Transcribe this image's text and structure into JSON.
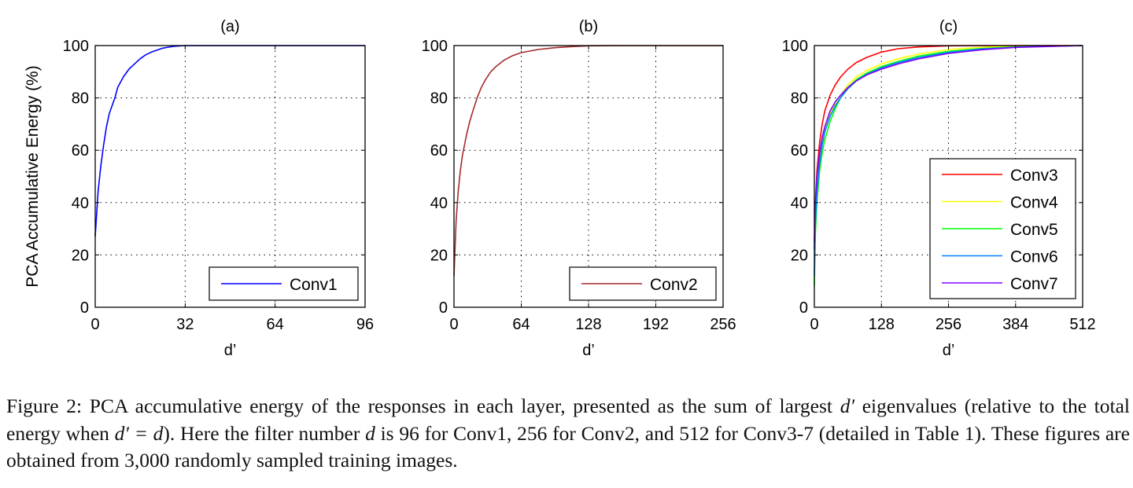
{
  "chart_data": [
    {
      "type": "line",
      "title": "(a)",
      "xlabel": "d’",
      "ylabel": "PCA Accumulative Energy (%)",
      "xlim": [
        0,
        96
      ],
      "ylim": [
        0,
        100
      ],
      "xticks": [
        0,
        32,
        64,
        96
      ],
      "yticks": [
        0,
        20,
        40,
        60,
        80,
        100
      ],
      "grid": true,
      "legend_position": "bottom-right",
      "series": [
        {
          "name": "Conv1",
          "color": "#0000ff",
          "x": [
            0,
            1,
            2,
            3,
            4,
            5,
            6,
            7,
            8,
            10,
            12,
            14,
            16,
            18,
            20,
            22,
            24,
            26,
            28,
            32,
            40,
            64,
            96
          ],
          "y": [
            27,
            44,
            54,
            62,
            69,
            74,
            77,
            80,
            84,
            88,
            91,
            93,
            95,
            96.5,
            97.5,
            98.3,
            99,
            99.4,
            99.7,
            100,
            100,
            100,
            100
          ]
        }
      ]
    },
    {
      "type": "line",
      "title": "(b)",
      "xlabel": "d’",
      "ylabel": "",
      "xlim": [
        0,
        256
      ],
      "ylim": [
        0,
        100
      ],
      "xticks": [
        0,
        64,
        128,
        192,
        256
      ],
      "yticks": [
        0,
        20,
        40,
        60,
        80,
        100
      ],
      "grid": true,
      "legend_position": "bottom-right",
      "series": [
        {
          "name": "Conv2",
          "color": "#a52a2a",
          "x": [
            0,
            2,
            4,
            6,
            8,
            10,
            12,
            15,
            18,
            22,
            26,
            30,
            35,
            40,
            48,
            56,
            64,
            80,
            96,
            112,
            128,
            160,
            192,
            256
          ],
          "y": [
            12,
            33,
            44,
            52,
            58,
            62,
            66,
            71,
            75,
            80,
            84,
            87,
            90,
            92,
            94.5,
            96.2,
            97.3,
            98.5,
            99.2,
            99.6,
            99.9,
            100,
            100,
            100
          ]
        }
      ]
    },
    {
      "type": "line",
      "title": "(c)",
      "xlabel": "d’",
      "ylabel": "",
      "xlim": [
        0,
        512
      ],
      "ylim": [
        0,
        100
      ],
      "xticks": [
        0,
        128,
        256,
        384,
        512
      ],
      "yticks": [
        0,
        20,
        40,
        60,
        80,
        100
      ],
      "grid": true,
      "legend_position": "bottom-right",
      "series": [
        {
          "name": "Conv3",
          "color": "#ff0000",
          "x": [
            0,
            2,
            5,
            10,
            15,
            20,
            30,
            40,
            50,
            64,
            80,
            100,
            128,
            160,
            200,
            256,
            320,
            384,
            512
          ],
          "y": [
            22,
            40,
            52,
            63,
            70,
            75,
            81,
            85,
            88,
            91,
            93.5,
            95.5,
            97.5,
            98.8,
            99.5,
            99.9,
            100,
            100,
            100
          ]
        },
        {
          "name": "Conv4",
          "color": "#ffff00",
          "x": [
            0,
            2,
            5,
            10,
            15,
            20,
            30,
            40,
            50,
            64,
            80,
            100,
            128,
            160,
            200,
            256,
            320,
            384,
            512
          ],
          "y": [
            15,
            35,
            46,
            56,
            63,
            68,
            74,
            78,
            81,
            85,
            88,
            90.5,
            93,
            95,
            96.8,
            98.5,
            99.4,
            99.8,
            100
          ]
        },
        {
          "name": "Conv5",
          "color": "#00ff00",
          "x": [
            0,
            2,
            5,
            10,
            15,
            20,
            30,
            40,
            50,
            64,
            80,
            100,
            128,
            160,
            200,
            256,
            320,
            384,
            512
          ],
          "y": [
            8,
            28,
            40,
            52,
            59,
            64,
            71,
            76,
            80,
            84,
            87,
            89.5,
            92,
            94,
            96,
            97.8,
            98.9,
            99.5,
            100
          ]
        },
        {
          "name": "Conv6",
          "color": "#0080ff",
          "x": [
            0,
            2,
            5,
            10,
            15,
            20,
            30,
            40,
            50,
            64,
            80,
            100,
            128,
            160,
            200,
            256,
            320,
            384,
            512
          ],
          "y": [
            12,
            32,
            44,
            55,
            62,
            67,
            73,
            77,
            80,
            83.5,
            86.5,
            89,
            91.5,
            93.5,
            95.5,
            97.4,
            98.7,
            99.4,
            100
          ]
        },
        {
          "name": "Conv7",
          "color": "#8000ff",
          "x": [
            0,
            2,
            5,
            10,
            15,
            20,
            30,
            40,
            50,
            64,
            80,
            100,
            128,
            160,
            200,
            256,
            320,
            384,
            512
          ],
          "y": [
            25,
            40,
            50,
            59,
            65,
            69,
            75,
            78.5,
            81,
            84,
            86.5,
            88.8,
            91,
            93,
            95,
            97,
            98.4,
            99.3,
            100
          ]
        }
      ]
    }
  ],
  "caption": {
    "s1": "Figure 2: PCA accumulative energy of the responses in each layer, presented as the sum of largest ",
    "m1": "d′",
    "s2": " eigenvalues (relative to the total energy when ",
    "m2": "d′ = d",
    "s3": "). Here the filter number ",
    "m3": "d",
    "s4": " is 96 for Conv1, 256 for Conv2, and 512 for Conv3-7 (detailed in Table 1). These figures are obtained from 3,000 randomly sampled training images."
  }
}
